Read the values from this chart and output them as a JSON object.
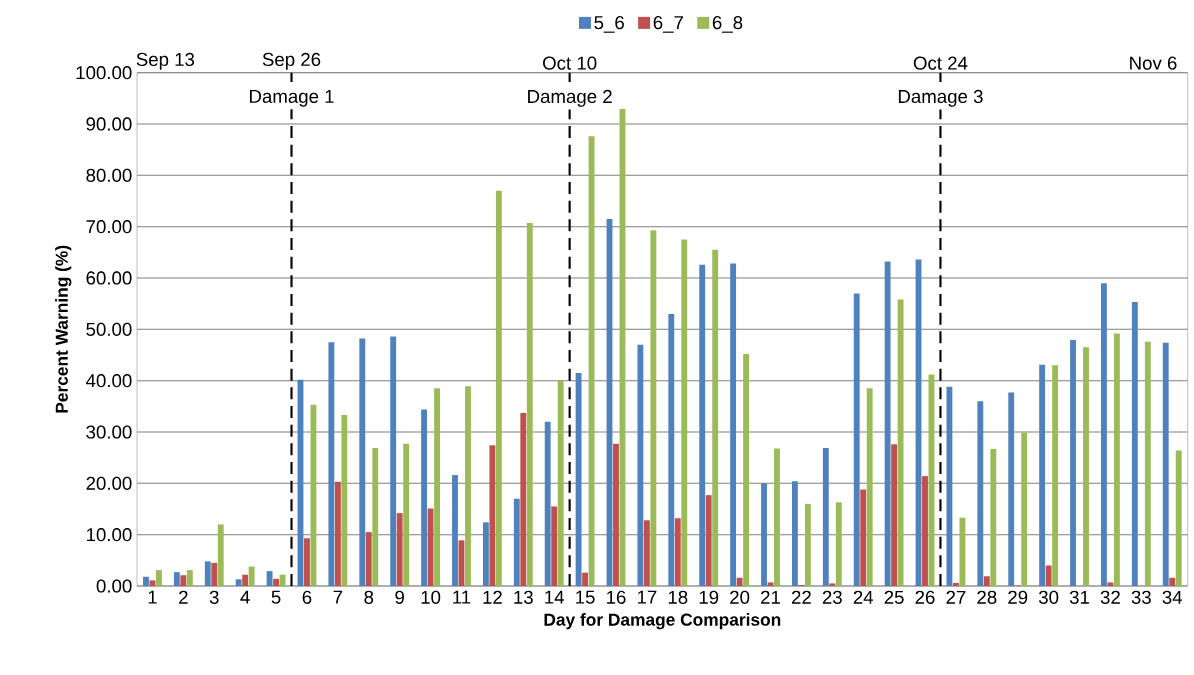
{
  "chart_data": {
    "type": "bar",
    "xlabel": "Day for Damage Comparison",
    "ylabel": "Percent Warning (%)",
    "x": [
      1,
      2,
      3,
      4,
      5,
      6,
      7,
      8,
      9,
      10,
      11,
      12,
      13,
      14,
      15,
      16,
      17,
      18,
      19,
      20,
      21,
      22,
      23,
      24,
      25,
      26,
      27,
      28,
      29,
      30,
      31,
      32,
      33,
      34
    ],
    "series": [
      {
        "name": "5_6",
        "color": "#4f81bd",
        "values": [
          1.8,
          2.7,
          4.8,
          1.3,
          2.9,
          40.2,
          47.5,
          48.2,
          48.6,
          34.4,
          21.6,
          12.4,
          17.0,
          32.0,
          41.5,
          71.5,
          47.0,
          53.0,
          62.6,
          62.8,
          20.0,
          20.4,
          26.9,
          57.0,
          63.2,
          63.6,
          38.8,
          36.0,
          37.7,
          43.1,
          47.9,
          59.0,
          55.3,
          47.4
        ]
      },
      {
        "name": "6_7",
        "color": "#c0504d",
        "values": [
          1.1,
          2.1,
          4.5,
          2.2,
          1.4,
          9.3,
          20.3,
          10.5,
          14.2,
          15.1,
          8.9,
          27.4,
          33.7,
          15.5,
          2.6,
          27.7,
          12.8,
          13.2,
          17.7,
          1.6,
          0.7,
          0.2,
          0.5,
          18.8,
          27.6,
          21.4,
          0.6,
          1.9,
          0.1,
          4.0,
          0,
          0.7,
          0,
          1.6
        ]
      },
      {
        "name": "6_8",
        "color": "#9bbb59",
        "values": [
          3.1,
          3.1,
          12.0,
          3.8,
          2.2,
          35.3,
          33.3,
          26.9,
          27.7,
          38.5,
          38.9,
          77.0,
          70.7,
          40.0,
          87.6,
          92.9,
          69.3,
          67.5,
          65.5,
          45.2,
          26.8,
          16.0,
          16.3,
          38.5,
          55.8,
          41.2,
          13.3,
          26.7,
          29.9,
          43.0,
          46.5,
          49.2,
          47.6,
          26.4
        ]
      }
    ],
    "xlim": [
      0.5,
      34.5
    ],
    "xticks": [
      1,
      2,
      3,
      4,
      5,
      6,
      7,
      8,
      9,
      10,
      11,
      12,
      13,
      14,
      15,
      16,
      17,
      18,
      19,
      20,
      21,
      22,
      23,
      24,
      25,
      26,
      27,
      28,
      29,
      30,
      31,
      32,
      33,
      34
    ],
    "ylim": [
      0,
      100
    ],
    "yticks": [
      {
        "value": 0,
        "label": "0.00"
      },
      {
        "value": 10,
        "label": "10.00"
      },
      {
        "value": 20,
        "label": "20.00"
      },
      {
        "value": 30,
        "label": "30.00"
      },
      {
        "value": 40,
        "label": "40.00"
      },
      {
        "value": 50,
        "label": "50.00"
      },
      {
        "value": 60,
        "label": "60.00"
      },
      {
        "value": 70,
        "label": "70.00"
      },
      {
        "value": 80,
        "label": "80.00"
      },
      {
        "value": 90,
        "label": "90.00"
      },
      {
        "value": 100,
        "label": "100.00"
      }
    ],
    "annotations": [
      "Sep 13",
      {
        "text": "Sep 26",
        "x": 5.5,
        "y": 100
      },
      {
        "text": "Oct 10",
        "x": 14.5,
        "y": 100
      },
      {
        "text": "Oct 24",
        "x": 26.5,
        "y": 100
      },
      "Nov 6"
    ],
    "ref_lines": [
      {
        "axis": "x",
        "value": 5.5,
        "label": "Damage 1",
        "color": "#000000",
        "line_style": "dashed"
      },
      {
        "axis": "x",
        "value": 14.5,
        "label": "Damage 2",
        "color": "#000000",
        "line_style": "dashed"
      },
      {
        "axis": "x",
        "value": 26.5,
        "label": "Damage 3",
        "color": "#000000",
        "line_style": "dashed"
      }
    ],
    "grid": "y",
    "legend": "top"
  }
}
